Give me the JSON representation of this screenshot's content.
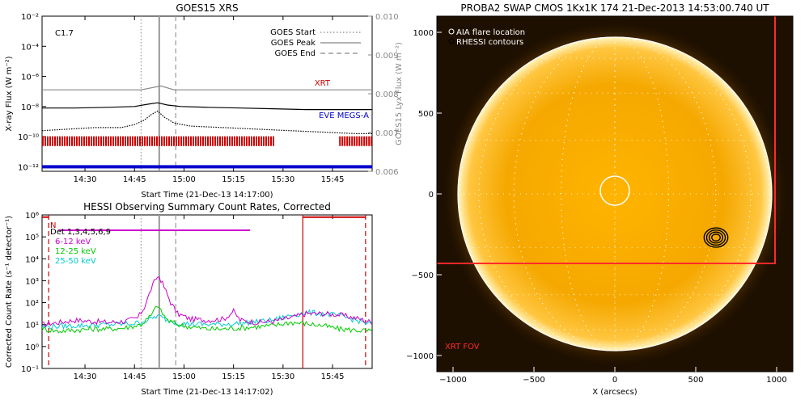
{
  "chart_data": [
    {
      "type": "line",
      "title": "GOES15 XRS",
      "xlabel": "Start Time (21-Dec-13 14:17:00)",
      "ylabel": "X-ray Flux (W m⁻²)",
      "ylabel_right": "GOES15 Lyx Flux (W m⁻²)",
      "x_ticks": [
        "14:30",
        "14:45",
        "15:00",
        "15:15",
        "15:30",
        "15:45"
      ],
      "y_ticks": [
        "10⁻¹²",
        "10⁻¹⁰",
        "10⁻⁸",
        "10⁻⁶",
        "10⁻⁴",
        "10⁻²"
      ],
      "y_ticks_right": [
        "0.006",
        "0.007",
        "0.008",
        "0.009",
        "0.010"
      ],
      "xlim_minutes": [
        0,
        100
      ],
      "ylim_log10": [
        -12.3,
        -2
      ],
      "ylim_right": [
        0.006,
        0.01
      ],
      "annotation": "C1.7",
      "legend": [
        {
          "name": "GOES Start",
          "style": "dotted",
          "color": "#888888"
        },
        {
          "name": "GOES Peak",
          "style": "solid",
          "color": "#888888"
        },
        {
          "name": "GOES End",
          "style": "dashed",
          "color": "#888888"
        }
      ],
      "event_lines_minutes": {
        "start": 30,
        "peak": 35.5,
        "end": 40.5
      },
      "series": [
        {
          "name": "",
          "color": "#000000",
          "style": "solid",
          "x": [
            0,
            10,
            20,
            28,
            32,
            35,
            38,
            42,
            50,
            60,
            70,
            80,
            90,
            100
          ],
          "y_log10": [
            -8.1,
            -8.1,
            -8.05,
            -8.0,
            -7.85,
            -7.75,
            -7.9,
            -8.0,
            -8.05,
            -8.1,
            -8.15,
            -8.2,
            -8.2,
            -8.2
          ]
        },
        {
          "name": "",
          "color": "#888888",
          "style": "solid",
          "x": [
            0,
            10,
            20,
            30,
            36,
            40,
            50,
            60,
            70,
            80,
            90,
            100
          ],
          "y_right": [
            0.0081,
            0.0081,
            0.0081,
            0.0081,
            0.0082,
            0.0081,
            0.0081,
            0.0081,
            0.0081,
            0.0081,
            0.0081,
            0.0081
          ]
        },
        {
          "name": "",
          "color": "#000000",
          "style": "dotted",
          "x": [
            0,
            8,
            16,
            24,
            28,
            31,
            33,
            35,
            37,
            40,
            45,
            55,
            65,
            75,
            85,
            95,
            100
          ],
          "y_log10": [
            -9.6,
            -9.5,
            -9.4,
            -9.4,
            -9.2,
            -8.9,
            -8.55,
            -8.3,
            -8.7,
            -9.1,
            -9.3,
            -9.4,
            -9.5,
            -9.6,
            -9.7,
            -9.8,
            -9.8
          ]
        }
      ],
      "bands": [
        {
          "name": "XRT",
          "color": "#cc0000",
          "y_log10": -10.3,
          "x_ranges": [
            [
              0,
              70
            ],
            [
              90,
              100
            ]
          ]
        },
        {
          "name": "EVE MEGS-A",
          "color": "#0000cc",
          "y_log10": -12.0,
          "x_ranges": [
            [
              0,
              100
            ]
          ]
        }
      ]
    },
    {
      "type": "line",
      "title": "HESSI Observing Summary Count Rates, Corrected",
      "xlabel": "Start Time (21-Dec-13 14:17:02)",
      "ylabel": "Corrected Count Rate (s⁻¹ detector⁻¹)",
      "x_ticks": [
        "14:30",
        "14:45",
        "15:00",
        "15:15",
        "15:30",
        "15:45"
      ],
      "y_ticks": [
        "10⁻¹",
        "10⁰",
        "10¹",
        "10²",
        "10³",
        "10⁴",
        "10⁵",
        "10⁶"
      ],
      "xlim_minutes": [
        0,
        100
      ],
      "ylim_log10": [
        -1,
        6
      ],
      "detectors_label": "Det 1,3,4,5,6,9",
      "night_label": "N",
      "event_lines_minutes": {
        "start": 30,
        "peak": 35.5,
        "end": 40.5
      },
      "red_vertical_minutes": [
        2,
        79,
        98
      ],
      "series": [
        {
          "name": "6-12 keV",
          "color": "#cc00cc",
          "x": [
            0,
            5,
            10,
            15,
            20,
            25,
            29,
            31,
            33,
            34.5,
            35.5,
            37,
            39,
            41,
            45,
            50,
            55,
            58,
            60,
            65,
            70,
            75,
            80,
            85,
            90,
            95,
            100
          ],
          "y_log10": [
            1.0,
            1.1,
            1.2,
            1.15,
            1.1,
            1.15,
            1.3,
            1.8,
            2.6,
            3.1,
            3.2,
            2.7,
            2.0,
            1.5,
            1.25,
            1.2,
            1.25,
            1.6,
            1.2,
            1.1,
            1.15,
            1.3,
            1.5,
            1.5,
            1.45,
            1.3,
            1.1
          ]
        },
        {
          "name": "12-25 keV",
          "color": "#00cc00",
          "x": [
            0,
            5,
            10,
            15,
            20,
            25,
            30,
            33,
            35,
            36,
            38,
            41,
            45,
            50,
            55,
            60,
            65,
            70,
            75,
            80,
            85,
            90,
            95,
            100
          ],
          "y_log10": [
            0.8,
            0.7,
            0.75,
            0.8,
            0.8,
            0.85,
            1.0,
            1.4,
            1.9,
            1.6,
            1.2,
            1.0,
            0.9,
            0.8,
            0.8,
            0.85,
            0.9,
            0.95,
            1.1,
            1.05,
            0.95,
            0.8,
            0.75,
            0.7
          ]
        },
        {
          "name": "25-50 keV",
          "color": "#00cccc",
          "x": [
            0,
            10,
            20,
            28,
            32,
            35,
            38,
            42,
            50,
            60,
            70,
            75,
            80,
            85,
            90,
            95,
            100
          ],
          "y_log10": [
            0.9,
            0.95,
            1.0,
            1.05,
            1.2,
            1.4,
            1.2,
            1.05,
            1.0,
            1.05,
            1.2,
            1.4,
            1.55,
            1.5,
            1.4,
            1.2,
            1.0
          ]
        }
      ],
      "bands": [
        {
          "name": "Det 1,3,4,5,6,9",
          "color": "#cc00cc",
          "y_log10": 5.3,
          "x_ranges": [
            [
              5,
              63
            ]
          ]
        },
        {
          "name": "N",
          "color": "#cc0000",
          "y_log10": 5.9,
          "x_ranges": [
            [
              0,
              2
            ],
            [
              79,
              98
            ]
          ]
        }
      ]
    },
    {
      "type": "heatmap",
      "title": "PROBA2 SWAP CMOS 1Kx1K 174 21-Dec-2013 14:53:00.740 UT",
      "xlabel": "X (arcsecs)",
      "ylabel": "",
      "x_ticks": [
        "−1000",
        "−500",
        "0",
        "500",
        "1000"
      ],
      "y_ticks": [
        "−1000",
        "−500",
        "0",
        "500",
        "1000"
      ],
      "xlim": [
        -1100,
        1100
      ],
      "ylim": [
        -1100,
        1100
      ],
      "solar_radius_arcsec": 970,
      "legend": [
        "AIA flare location",
        "RHESSI contours"
      ],
      "fov_label": "XRT FOV",
      "aia_flare_center": [
        0,
        20
      ],
      "aia_flare_radius": 90,
      "rhessi_contours_center": [
        625,
        -270
      ],
      "xrt_fov": {
        "x": [
          -1100,
          990
        ],
        "y": [
          -430,
          1100
        ]
      },
      "colors": {
        "sun": "#ffb300",
        "limb": "#ffffff",
        "fov": "#ff2a2a"
      }
    }
  ]
}
